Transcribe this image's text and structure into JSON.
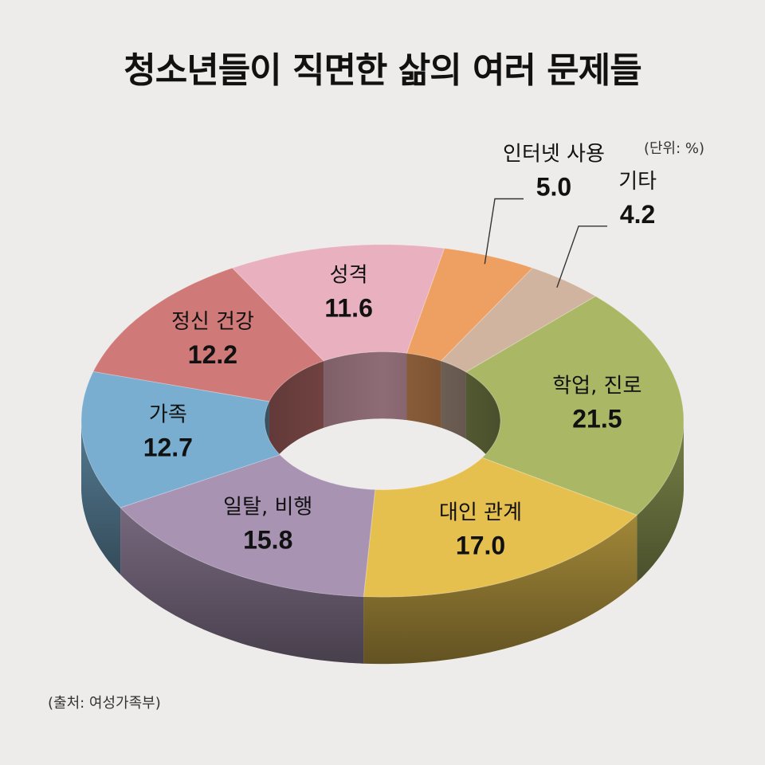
{
  "title": "청소년들이 직면한 삶의 여러 문제들",
  "unit": "(단위: %)",
  "source": "(출처: 여성가족부)",
  "chart_data": {
    "type": "pie",
    "style": "3d-donut",
    "title": "청소년들이 직면한 삶의 여러 문제들",
    "unit": "%",
    "slices": [
      {
        "label": "학업, 진로",
        "value": 21.5,
        "color": "#aab865"
      },
      {
        "label": "대인 관계",
        "value": 17.0,
        "color": "#e6c04f"
      },
      {
        "label": "일탈, 비행",
        "value": 15.8,
        "color": "#a893b2"
      },
      {
        "label": "가족",
        "value": 12.7,
        "color": "#79aed0"
      },
      {
        "label": "정신 건강",
        "value": 12.2,
        "color": "#cf7a78"
      },
      {
        "label": "성격",
        "value": 11.6,
        "color": "#e9b1c0"
      },
      {
        "label": "인터넷 사용",
        "value": 5.0,
        "color": "#eda062"
      },
      {
        "label": "기타",
        "value": 4.2,
        "color": "#d0b4a0"
      }
    ]
  }
}
